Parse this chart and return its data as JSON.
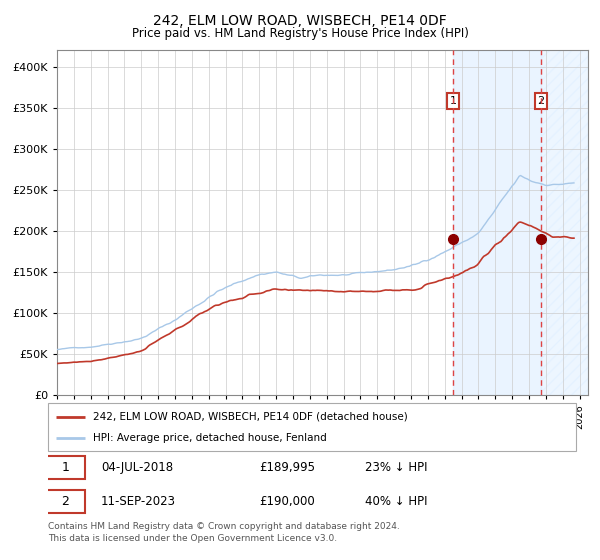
{
  "title": "242, ELM LOW ROAD, WISBECH, PE14 0DF",
  "subtitle": "Price paid vs. HM Land Registry's House Price Index (HPI)",
  "legend_line1": "242, ELM LOW ROAD, WISBECH, PE14 0DF (detached house)",
  "legend_line2": "HPI: Average price, detached house, Fenland",
  "footnote": "Contains HM Land Registry data © Crown copyright and database right 2024.\nThis data is licensed under the Open Government Licence v3.0.",
  "transaction1_label": "1",
  "transaction1_date": "04-JUL-2018",
  "transaction1_price": "£189,995",
  "transaction1_hpi": "23% ↓ HPI",
  "transaction2_label": "2",
  "transaction2_date": "11-SEP-2023",
  "transaction2_price": "£190,000",
  "transaction2_hpi": "40% ↓ HPI",
  "hpi_color": "#a8c8e8",
  "price_color": "#c0392b",
  "marker_color": "#8b0000",
  "dashed_line_color": "#dd4444",
  "background_fill_color": "#ddeeff",
  "yticks": [
    0,
    50000,
    100000,
    150000,
    200000,
    250000,
    300000,
    350000,
    400000
  ],
  "ylim": [
    0,
    420000
  ],
  "xlim_start": 1995.0,
  "xlim_end": 2026.5,
  "transaction1_x": 2018.5,
  "transaction2_x": 2023.72,
  "transaction1_y": 189995,
  "transaction2_y": 190000
}
